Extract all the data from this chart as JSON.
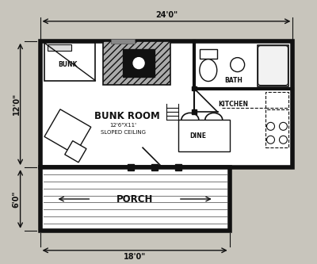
{
  "bg_color": "#c8c5bc",
  "wall_color": "#111111",
  "floor_color": "#ffffff",
  "title": "BUNK ROOM",
  "subtitle": "12'6\"X11'",
  "subtitle2": "SLOPED CEILING",
  "dim_24": "24'0\"",
  "dim_12": "12'0\"",
  "dim_6": "6'0\"",
  "dim_18": "18'0\""
}
